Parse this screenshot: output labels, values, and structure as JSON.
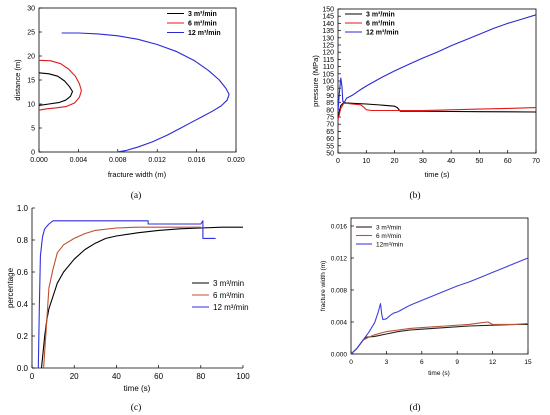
{
  "chart_data": [
    {
      "type": "line",
      "label": "(a)",
      "xlabel": "fracture width (m)",
      "ylabel": "distance (m)",
      "xlim": [
        0,
        0.02
      ],
      "ylim": [
        0,
        30
      ],
      "xticks": [
        "0.000",
        "0.004",
        "0.008",
        "0.012",
        "0.016",
        "0.020"
      ],
      "yticks": [
        "0",
        "5",
        "10",
        "15",
        "20",
        "25",
        "30"
      ],
      "grid": false,
      "legend": "top-right",
      "series": [
        {
          "name": "3 m³/min",
          "color": "#000000",
          "points": [
            [
              0,
              16.5
            ],
            [
              0.001,
              16.3
            ],
            [
              0.0019,
              15.8
            ],
            [
              0.0026,
              14.8
            ],
            [
              0.0031,
              13.6
            ],
            [
              0.0034,
              12.6
            ],
            [
              0.0032,
              11.6
            ],
            [
              0.0027,
              10.8
            ],
            [
              0.002,
              10.3
            ],
            [
              0.001,
              10.0
            ],
            [
              0,
              9.7
            ]
          ]
        },
        {
          "name": "6 m³/min",
          "color": "#e31a1c",
          "points": [
            [
              0,
              19.1
            ],
            [
              0.0012,
              19.0
            ],
            [
              0.0022,
              18.4
            ],
            [
              0.003,
              17.3
            ],
            [
              0.0037,
              15.8
            ],
            [
              0.0041,
              14.2
            ],
            [
              0.0043,
              12.8
            ],
            [
              0.0041,
              11.4
            ],
            [
              0.0036,
              10.2
            ],
            [
              0.0028,
              9.5
            ],
            [
              0.0018,
              9.2
            ],
            [
              0.0008,
              9.0
            ],
            [
              0,
              8.7
            ]
          ]
        },
        {
          "name": "12 m³/min",
          "color": "#2a2ad4",
          "points": [
            [
              0.0023,
              24.8
            ],
            [
              0.004,
              24.8
            ],
            [
              0.006,
              24.6
            ],
            [
              0.008,
              24.2
            ],
            [
              0.01,
              23.5
            ],
            [
              0.012,
              22.4
            ],
            [
              0.014,
              20.9
            ],
            [
              0.0158,
              19.0
            ],
            [
              0.0172,
              17.0
            ],
            [
              0.0183,
              15.0
            ],
            [
              0.019,
              13.2
            ],
            [
              0.0193,
              12.0
            ],
            [
              0.0191,
              10.8
            ],
            [
              0.0185,
              9.6
            ],
            [
              0.0176,
              8.5
            ],
            [
              0.0166,
              7.4
            ],
            [
              0.0155,
              6.2
            ],
            [
              0.0143,
              4.9
            ],
            [
              0.013,
              3.5
            ],
            [
              0.0115,
              2.1
            ],
            [
              0.01,
              1.0
            ],
            [
              0.0088,
              0.3
            ],
            [
              0.0079,
              0
            ]
          ]
        }
      ]
    },
    {
      "type": "line",
      "label": "(b)",
      "xlabel": "time (s)",
      "ylabel": "pressure (MPa)",
      "xlim": [
        0,
        70
      ],
      "ylim": [
        50,
        150
      ],
      "xticks": [
        "0",
        "10",
        "20",
        "30",
        "40",
        "50",
        "60",
        "70"
      ],
      "yticks": [
        "50",
        "55",
        "60",
        "65",
        "70",
        "75",
        "80",
        "85",
        "90",
        "95",
        "100",
        "105",
        "110",
        "115",
        "120",
        "125",
        "130",
        "135",
        "140",
        "145",
        "150"
      ],
      "grid": false,
      "legend": "top-left",
      "series": [
        {
          "name": "3 m³/min",
          "color": "#000000",
          "points": [
            [
              0,
              75
            ],
            [
              0.5,
              79
            ],
            [
              1,
              83
            ],
            [
              2,
              85
            ],
            [
              3,
              84.8
            ],
            [
              5,
              84.5
            ],
            [
              10,
              84
            ],
            [
              15,
              83.3
            ],
            [
              20,
              82.5
            ],
            [
              21,
              81.5
            ],
            [
              22,
              79
            ],
            [
              30,
              79
            ],
            [
              40,
              78.8
            ],
            [
              50,
              78.7
            ],
            [
              60,
              78.6
            ],
            [
              70,
              78.5
            ]
          ]
        },
        {
          "name": "6 m³/min",
          "color": "#e31a1c",
          "points": [
            [
              0,
              73
            ],
            [
              0.5,
              77
            ],
            [
              1,
              81
            ],
            [
              2,
              84.5
            ],
            [
              3,
              84.5
            ],
            [
              5,
              84
            ],
            [
              8,
              83.5
            ],
            [
              9,
              82
            ],
            [
              10,
              80
            ],
            [
              12,
              79.5
            ],
            [
              20,
              79.5
            ],
            [
              30,
              79.5
            ],
            [
              40,
              80
            ],
            [
              50,
              80.5
            ],
            [
              60,
              81
            ],
            [
              70,
              81.5
            ]
          ]
        },
        {
          "name": "12 m³/min",
          "color": "#2a2ad4",
          "points": [
            [
              0,
              79
            ],
            [
              0.5,
              92
            ],
            [
              1,
              102
            ],
            [
              1.4,
              96
            ],
            [
              1.7,
              86
            ],
            [
              2.2,
              85
            ],
            [
              3,
              88
            ],
            [
              5,
              90
            ],
            [
              8,
              94
            ],
            [
              10,
              96.5
            ],
            [
              15,
              102
            ],
            [
              20,
              107
            ],
            [
              25,
              111.5
            ],
            [
              30,
              116
            ],
            [
              35,
              120
            ],
            [
              40,
              124.5
            ],
            [
              45,
              128.5
            ],
            [
              50,
              132.5
            ],
            [
              55,
              136.5
            ],
            [
              60,
              140
            ],
            [
              65,
              143
            ],
            [
              70,
              146
            ]
          ]
        }
      ]
    },
    {
      "type": "line",
      "label": "(c)",
      "xlabel": "time (s)",
      "ylabel": "percentage",
      "xlim": [
        0,
        100
      ],
      "ylim": [
        0,
        1.0
      ],
      "xticks": [
        "0",
        "20",
        "40",
        "60",
        "80",
        "100"
      ],
      "yticks": [
        "0.0",
        "0.2",
        "0.4",
        "0.6",
        "0.8",
        "1.0"
      ],
      "grid": false,
      "legend": "right",
      "series": [
        {
          "name": "3 m³/min",
          "color": "#000000",
          "points": [
            [
              4.5,
              0
            ],
            [
              6,
              0.2
            ],
            [
              7,
              0.3
            ],
            [
              8,
              0.37
            ],
            [
              10,
              0.45
            ],
            [
              12,
              0.53
            ],
            [
              15,
              0.6
            ],
            [
              20,
              0.68
            ],
            [
              25,
              0.74
            ],
            [
              30,
              0.78
            ],
            [
              35,
              0.81
            ],
            [
              40,
              0.825
            ],
            [
              50,
              0.845
            ],
            [
              60,
              0.86
            ],
            [
              70,
              0.87
            ],
            [
              80,
              0.875
            ],
            [
              90,
              0.88
            ],
            [
              100,
              0.88
            ]
          ]
        },
        {
          "name": "6 m³/min",
          "color": "#c0502c",
          "points": [
            [
              5.5,
              0
            ],
            [
              7,
              0.3
            ],
            [
              8,
              0.5
            ],
            [
              10,
              0.62
            ],
            [
              12,
              0.72
            ],
            [
              15,
              0.77
            ],
            [
              20,
              0.81
            ],
            [
              25,
              0.84
            ],
            [
              30,
              0.86
            ],
            [
              40,
              0.875
            ],
            [
              50,
              0.88
            ],
            [
              60,
              0.88
            ],
            [
              70,
              0.88
            ],
            [
              80,
              0.88
            ]
          ]
        },
        {
          "name": "12 m³/min",
          "color": "#2f2fe0",
          "points": [
            [
              3,
              0
            ],
            [
              3.5,
              0.4
            ],
            [
              4,
              0.7
            ],
            [
              5,
              0.82
            ],
            [
              6,
              0.87
            ],
            [
              8,
              0.9
            ],
            [
              10,
              0.92
            ],
            [
              55,
              0.92
            ],
            [
              55,
              0.9
            ],
            [
              80,
              0.9
            ],
            [
              81,
              0.92
            ],
            [
              81,
              0.81
            ],
            [
              87,
              0.81
            ]
          ]
        }
      ]
    },
    {
      "type": "line",
      "label": "(d)",
      "xlabel": "time (s)",
      "ylabel": "fracture width (m)",
      "xlim": [
        0,
        15
      ],
      "ylim": [
        0,
        0.017
      ],
      "xticks": [
        "0",
        "3",
        "6",
        "9",
        "12",
        "15"
      ],
      "yticks": [
        "0.000",
        "0.004",
        "0.008",
        "0.012",
        "0.016"
      ],
      "grid": false,
      "legend": "top-left",
      "series": [
        {
          "name": "3 m³/min",
          "color": "#222222",
          "points": [
            [
              0,
              0
            ],
            [
              0.5,
              0.0007
            ],
            [
              1,
              0.0017
            ],
            [
              1.3,
              0.0021
            ],
            [
              2,
              0.0022
            ],
            [
              3,
              0.0025
            ],
            [
              4,
              0.0028
            ],
            [
              5,
              0.003
            ],
            [
              6,
              0.0031
            ],
            [
              8,
              0.0033
            ],
            [
              10,
              0.0035
            ],
            [
              12,
              0.0036
            ],
            [
              14,
              0.0037
            ],
            [
              15,
              0.0037
            ]
          ]
        },
        {
          "name": "6 m³/min",
          "color": "#b5553a",
          "points": [
            [
              0,
              0
            ],
            [
              0.5,
              0.0007
            ],
            [
              1,
              0.0017
            ],
            [
              1.5,
              0.0021
            ],
            [
              2,
              0.0024
            ],
            [
              3,
              0.0028
            ],
            [
              4,
              0.003
            ],
            [
              5,
              0.0032
            ],
            [
              6,
              0.0033
            ],
            [
              8,
              0.0035
            ],
            [
              10,
              0.0037
            ],
            [
              11,
              0.0039
            ],
            [
              11.6,
              0.004
            ],
            [
              12,
              0.0037
            ],
            [
              13,
              0.0037
            ],
            [
              14,
              0.0037
            ],
            [
              15,
              0.0038
            ]
          ]
        },
        {
          "name": "12m³/min",
          "color": "#4040d8",
          "points": [
            [
              0,
              0
            ],
            [
              0.5,
              0.0007
            ],
            [
              1,
              0.0017
            ],
            [
              1.5,
              0.0027
            ],
            [
              2,
              0.0039
            ],
            [
              2.3,
              0.0052
            ],
            [
              2.5,
              0.0063
            ],
            [
              2.6,
              0.005
            ],
            [
              2.7,
              0.0043
            ],
            [
              3,
              0.0044
            ],
            [
              3.3,
              0.0048
            ],
            [
              3.6,
              0.0051
            ],
            [
              4,
              0.0053
            ],
            [
              4.5,
              0.0057
            ],
            [
              5,
              0.0061
            ],
            [
              6,
              0.0067
            ],
            [
              7,
              0.0073
            ],
            [
              8,
              0.0079
            ],
            [
              9,
              0.0085
            ],
            [
              10,
              0.009
            ],
            [
              11,
              0.0096
            ],
            [
              12,
              0.0102
            ],
            [
              13,
              0.0108
            ],
            [
              14,
              0.0114
            ],
            [
              15,
              0.012
            ]
          ]
        }
      ]
    }
  ]
}
